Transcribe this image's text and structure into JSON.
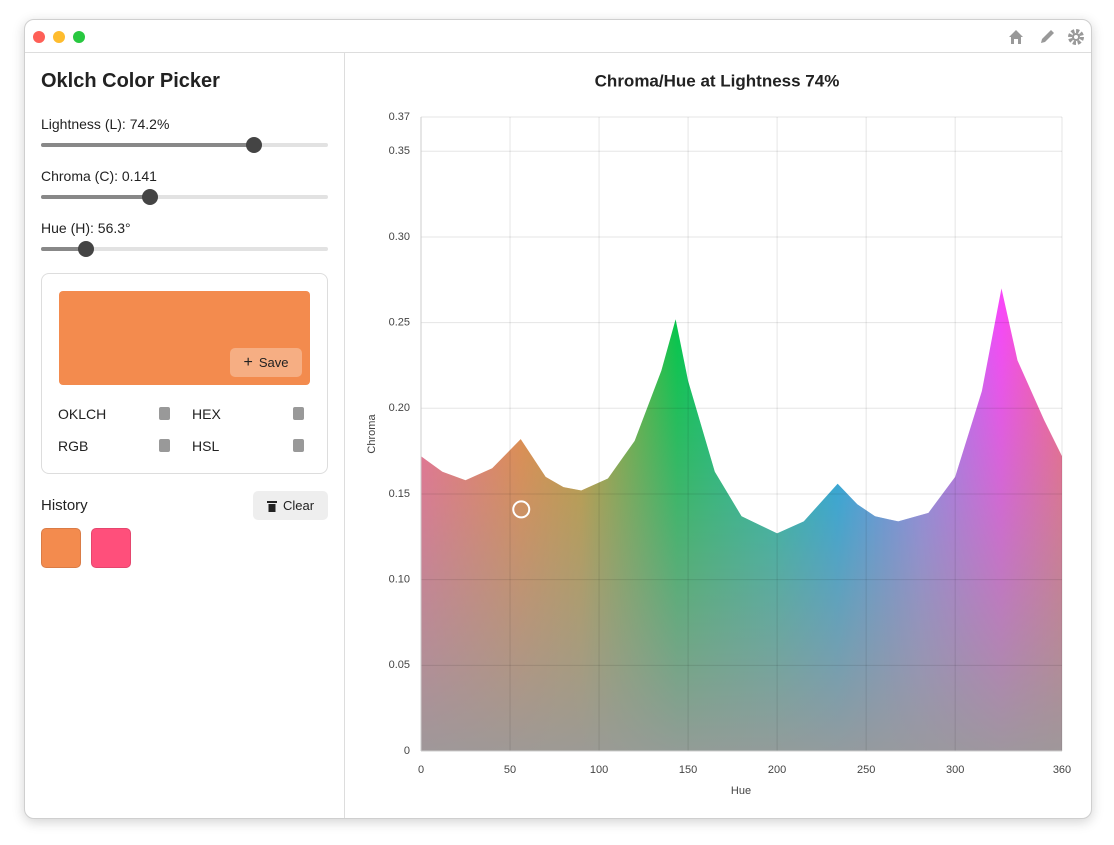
{
  "sidebar": {
    "title": "Oklch Color Picker",
    "sliders": [
      {
        "label": "Lightness (L): 74.2%",
        "value": 74.2,
        "range": [
          0,
          100
        ]
      },
      {
        "label": "Chroma (C): 0.141",
        "value": 0.141,
        "range": [
          0,
          0.37
        ]
      },
      {
        "label": "Hue (H): 56.3°",
        "value": 56.3,
        "range": [
          0,
          360
        ]
      }
    ],
    "preview": {
      "color": "#f38b4e",
      "save_button": "Save",
      "formats": [
        "OKLCH",
        "HEX",
        "RGB",
        "HSL"
      ]
    },
    "history": {
      "label": "History",
      "clear_button": "Clear",
      "swatches": [
        {
          "color": "#f38b4e"
        },
        {
          "color": "#ff4f7b"
        }
      ]
    }
  },
  "chart_data": {
    "type": "area",
    "title": "Chroma/Hue at Lightness 74%",
    "x_label": "Hue",
    "y_label": "Chroma",
    "x": [
      0,
      12,
      25,
      40,
      56,
      70,
      80,
      90,
      105,
      120,
      135,
      143,
      150,
      165,
      180,
      200,
      215,
      234,
      245,
      255,
      268,
      285,
      300,
      315,
      326,
      335,
      350,
      360
    ],
    "values": [
      0.172,
      0.163,
      0.158,
      0.165,
      0.182,
      0.16,
      0.154,
      0.152,
      0.159,
      0.181,
      0.222,
      0.252,
      0.216,
      0.163,
      0.137,
      0.127,
      0.134,
      0.156,
      0.144,
      0.137,
      0.134,
      0.139,
      0.16,
      0.21,
      0.27,
      0.228,
      0.193,
      0.172
    ],
    "marker": {
      "x": 56.3,
      "y": 0.141
    },
    "xlim": [
      0,
      360
    ],
    "ylim": [
      0,
      0.37
    ],
    "xticks": [
      0,
      50,
      100,
      150,
      200,
      250,
      300,
      360
    ],
    "yticks": [
      0,
      0.05,
      {
        "value": 0.1,
        "label": "0.10"
      },
      0.15,
      {
        "value": 0.2,
        "label": "0.20"
      },
      0.25,
      {
        "value": 0.3,
        "label": "0.30"
      },
      0.35,
      0.37
    ],
    "grid": true
  }
}
